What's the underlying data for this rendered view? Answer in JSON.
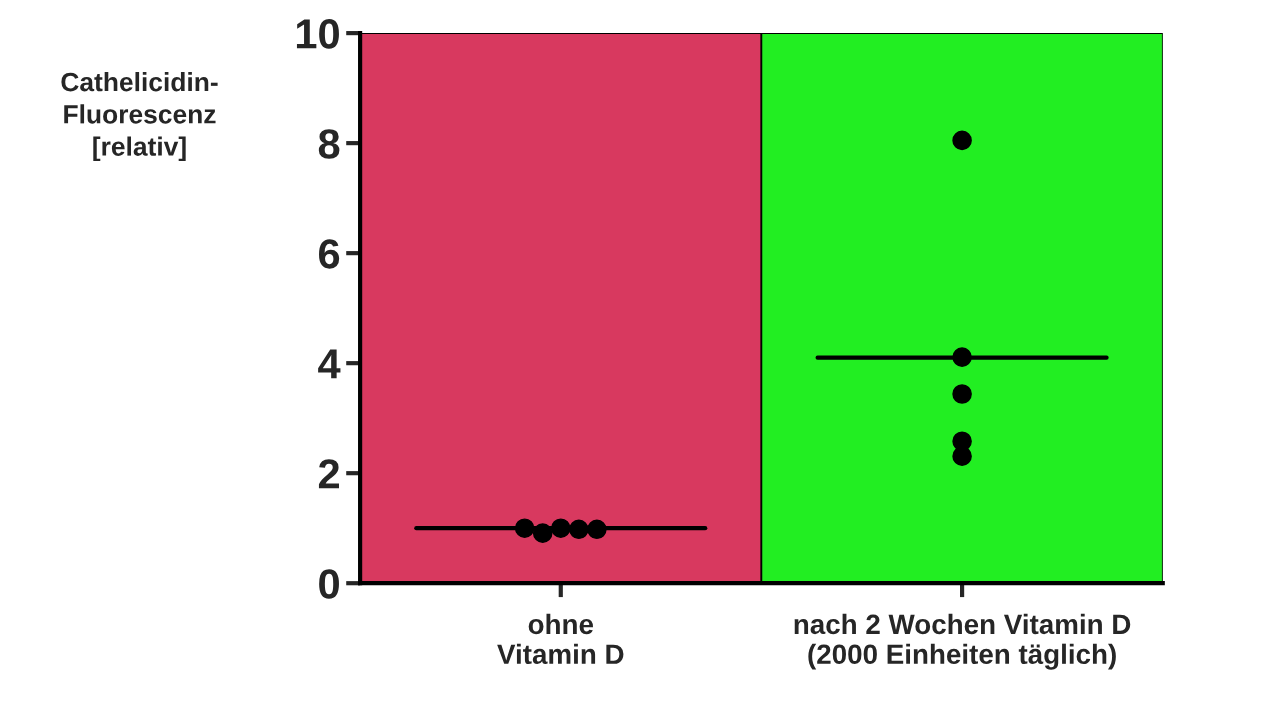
{
  "chart_data": {
    "type": "scatter",
    "categories": [
      "ohne\nVitamin D",
      "nach 2 Wochen Vitamin D\n(2000 Einheiten täglich)"
    ],
    "ylabel": "Cathelicidin-\nFluorescenz\n[relativ]",
    "series": [
      {
        "color": "#000000",
        "x": [
          "ohne\nVitamin D",
          "ohne\nVitamin D",
          "ohne\nVitamin D",
          "ohne\nVitamin D",
          "ohne\nVitamin D"
        ],
        "values": [
          1.0,
          0.98,
          0.91,
          0.98,
          1.0
        ]
      },
      {
        "color": "#000000",
        "x": [
          "nach 2 Wochen Vitamin D\n(2000 Einheiten täglich)",
          "nach 2 Wochen Vitamin D\n(2000 Einheiten täglich)",
          "nach 2 Wochen Vitamin D\n(2000 Einheiten täglich)",
          "nach 2 Wochen Vitamin D\n(2000 Einheiten täglich)",
          "nach 2 Wochen Vitamin D\n(2000 Einheiten täglich)"
        ],
        "values": [
          8.05,
          4.11,
          3.44,
          2.58,
          2.31
        ]
      }
    ],
    "ref_lines": [
      {
        "axis": "y",
        "value": 1.0,
        "color": "#000000"
      },
      {
        "axis": "y",
        "value": 4.1,
        "color": "#000000"
      }
    ],
    "bands": [
      {
        "axis": "x",
        "from": "ohne\nVitamin D",
        "to": "ohne\nVitamin D",
        "color": "#d8395f"
      },
      {
        "axis": "x",
        "from": "nach 2 Wochen Vitamin D\n(2000 Einheiten täglich)",
        "to": "nach 2 Wochen Vitamin D\n(2000 Einheiten täglich)",
        "color": "#22ee22"
      }
    ],
    "ylim": [
      0,
      10
    ],
    "yticks": [
      0,
      2,
      4,
      6,
      8,
      10
    ],
    "marker": "circle",
    "grid": false,
    "legend": false
  }
}
